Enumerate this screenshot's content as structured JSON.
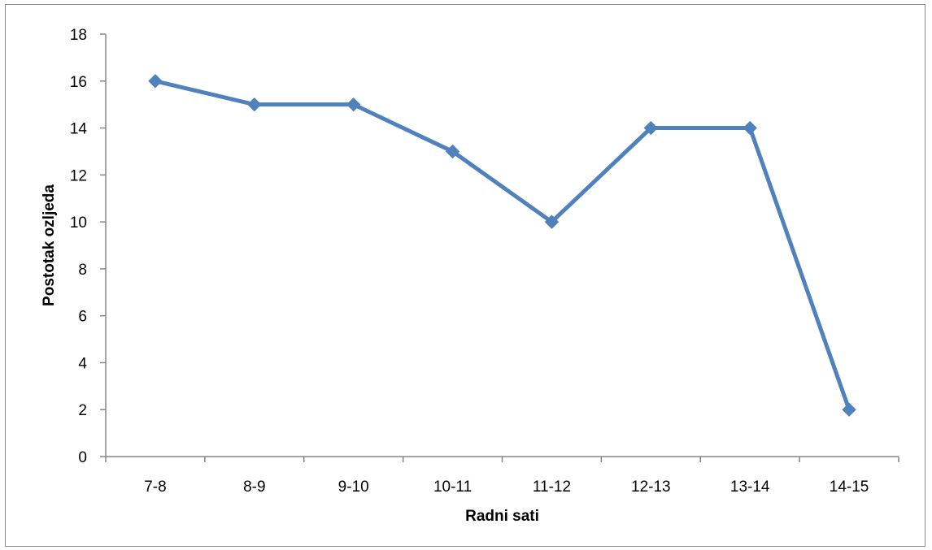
{
  "chart_data": {
    "type": "line",
    "title": "",
    "xlabel": "Radni sati",
    "ylabel": "Postotak ozljeda",
    "categories": [
      "7-8",
      "8-9",
      "9-10",
      "10-11",
      "11-12",
      "12-13",
      "13-14",
      "14-15"
    ],
    "series": [
      {
        "values": [
          16,
          15,
          15,
          13,
          10,
          14,
          14,
          2
        ],
        "color": "#4F81BD",
        "marker": "diamond"
      }
    ],
    "ylim": [
      0,
      18
    ],
    "yticks": [
      0,
      2,
      4,
      6,
      8,
      10,
      12,
      14,
      16,
      18
    ],
    "grid": false,
    "legend": "none"
  }
}
